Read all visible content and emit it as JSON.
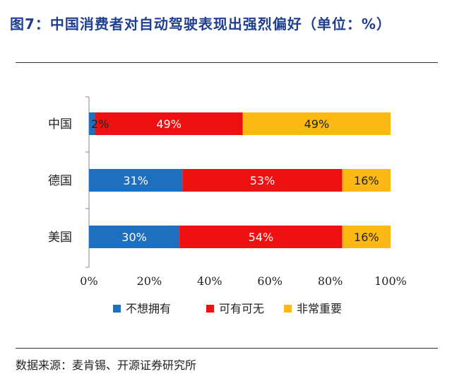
{
  "header": {
    "title": "图7：中国消费者对自动驾驶表现出强烈偏好（单位：%）"
  },
  "footer": {
    "source": "数据来源：麦肯锡、开源证券研究所"
  },
  "chart_data": {
    "type": "bar",
    "orientation": "horizontal",
    "stacked": true,
    "categories": [
      "中国",
      "德国",
      "美国"
    ],
    "series": [
      {
        "name": "不想拥有",
        "color": "#1f6fbf",
        "values": [
          2,
          31,
          30
        ],
        "labels": [
          "2%",
          "31%",
          "30%"
        ]
      },
      {
        "name": "可有可无",
        "color": "#ee1111",
        "values": [
          49,
          53,
          54
        ],
        "labels": [
          "49%",
          "53%",
          "54%"
        ]
      },
      {
        "name": "非常重要",
        "color": "#fdb913",
        "values": [
          49,
          16,
          16
        ],
        "labels": [
          "49%",
          "16%",
          "16%"
        ]
      }
    ],
    "xlim": [
      0,
      100
    ],
    "xticks": [
      "0%",
      "20%",
      "40%",
      "60%",
      "80%",
      "100%"
    ],
    "legend_position": "bottom",
    "grid": false
  }
}
